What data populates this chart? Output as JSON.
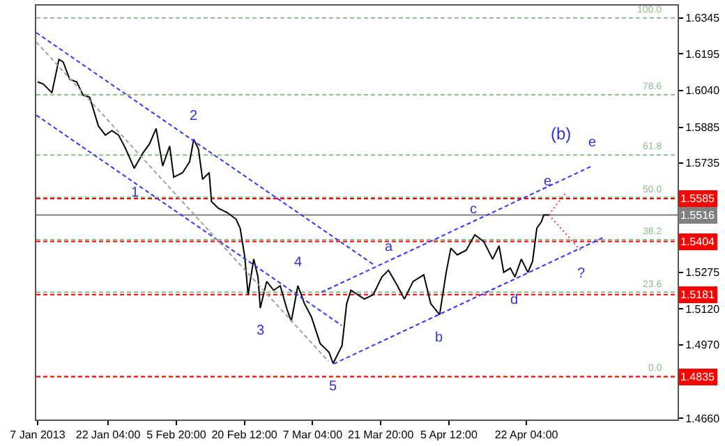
{
  "chart_data": {
    "type": "line",
    "xlim": [
      "2013-01-06T17:00",
      "2013-05-24T17:00"
    ],
    "xticks": [
      {
        "value": "2013-01-07",
        "label": "7 Jan 2013"
      },
      {
        "value": "2013-01-22T04:00",
        "label": "22 Jan 04:00"
      },
      {
        "value": "2013-02-05T20:00",
        "label": "5 Feb 20:00"
      },
      {
        "value": "2013-02-20T12:00",
        "label": "20 Feb 12:00"
      },
      {
        "value": "2013-03-07T04:00",
        "label": "7 Mar 04:00"
      },
      {
        "value": "2013-03-21T20:00",
        "label": "21 Mar 20:00"
      },
      {
        "value": "2013-04-05T12:00",
        "label": "5 Apr 12:00"
      },
      {
        "value": "2013-04-22T04:00",
        "label": "22 Apr 04:00"
      }
    ],
    "ylim": [
      1.4655,
      1.6397
    ],
    "yticks": [
      1.6345,
      1.6195,
      {
        "value": 1.604,
        "label": "1.6040"
      },
      1.5885,
      1.5735,
      1.5275,
      {
        "value": 1.512,
        "label": "1.5120"
      },
      {
        "value": 1.497,
        "label": "1.4970"
      },
      {
        "value": 1.466,
        "label": "1.4660"
      }
    ],
    "grid": false,
    "series": [
      {
        "color": "#000000",
        "line_style": "solid",
        "x": [
          "2013-01-07T00:00",
          "2013-01-08T05:00",
          "2013-01-10T02:00",
          "2013-01-11T14:00",
          "2013-01-12T12:00",
          "2013-01-13T22:00",
          "2013-01-15T10:00",
          "2013-01-16T19:00",
          "2013-01-18T05:00",
          "2013-01-20T02:00",
          "2013-01-21T14:00",
          "2013-01-23T00:00",
          "2013-01-24T10:00",
          "2013-01-25T22:00",
          "2013-01-27T19:00",
          "2013-01-29T17:00",
          "2013-01-31T02:00",
          "2013-02-01T12:00",
          "2013-02-02T22:00",
          "2013-02-04T10:00",
          "2013-02-05T07:00",
          "2013-02-07T05:00",
          "2013-02-08T17:00",
          "2013-02-09T14:00",
          "2013-02-10T14:00",
          "2013-02-11T12:00",
          "2013-02-12T22:00",
          "2013-02-13T10:00",
          "2013-02-14T22:00",
          "2013-02-16T19:00",
          "2013-02-18T17:00",
          "2013-02-19T14:00",
          "2013-02-20T14:00",
          "2013-02-21T07:00",
          "2013-02-22T12:00",
          "2013-02-23T10:00",
          "2013-02-23T22:00",
          "2013-02-25T07:00",
          "2013-02-26T19:00",
          "2013-02-28T05:00",
          "2013-03-01T14:00",
          "2013-03-02T14:00",
          "2013-03-04T00:00",
          "2013-03-05T10:00",
          "2013-03-06T22:00",
          "2013-03-08T19:00",
          "2013-03-10T17:00",
          "2013-03-11T14:00",
          "2013-03-13T12:00",
          "2013-03-14T12:00",
          "2013-03-15T10:00",
          "2013-03-18T07:00",
          "2013-03-20T05:00",
          "2013-03-22T02:00",
          "2013-03-23T12:00",
          "2013-03-25T10:00",
          "2013-03-26T22:00",
          "2013-03-28T19:00",
          "2013-03-31T02:00",
          "2013-04-01T14:00",
          "2013-04-03T12:00",
          "2013-04-04T22:00",
          "2013-04-05T22:00",
          "2013-04-07T07:00",
          "2013-04-09T05:00",
          "2013-04-11T02:00",
          "2013-04-13T00:00",
          "2013-04-14T22:00",
          "2013-04-16T07:00",
          "2013-04-17T07:00",
          "2013-04-18T17:00",
          "2013-04-19T17:00",
          "2013-04-21T02:00",
          "2013-04-22T12:00",
          "2013-04-23T12:00",
          "2013-04-24T10:00",
          "2013-04-25T10:00",
          "2013-04-25T22:00",
          "2013-04-27T00:00"
        ],
        "values": [
          1.6076,
          1.6067,
          1.603,
          1.617,
          1.616,
          1.6086,
          1.6076,
          1.602,
          1.6011,
          1.589,
          1.5852,
          1.5871,
          1.5852,
          1.5796,
          1.5712,
          1.5778,
          1.5815,
          1.588,
          1.5722,
          1.5806,
          1.5675,
          1.5694,
          1.574,
          1.5834,
          1.5796,
          1.5666,
          1.5694,
          1.5572,
          1.5544,
          1.5526,
          1.5498,
          1.546,
          1.5339,
          1.518,
          1.533,
          1.5255,
          1.5124,
          1.5236,
          1.5199,
          1.5218,
          1.5124,
          1.5068,
          1.5218,
          1.5143,
          1.5087,
          1.4975,
          1.4938,
          1.4891,
          1.4966,
          1.5143,
          1.5199,
          1.5162,
          1.518,
          1.5255,
          1.5283,
          1.5218,
          1.5162,
          1.5236,
          1.5264,
          1.5143,
          1.5096,
          1.5274,
          1.5376,
          1.5348,
          1.5367,
          1.5432,
          1.5404,
          1.533,
          1.5386,
          1.5274,
          1.5292,
          1.5255,
          1.533,
          1.5274,
          1.532,
          1.546,
          1.5488,
          1.5516,
          1.5516
        ]
      },
      {
        "color": "#3333ff",
        "line_style": "dashed",
        "x": [
          "2013-01-06T17:00",
          "2013-03-20T14:00"
        ],
        "values": [
          1.6283,
          1.5303
        ]
      },
      {
        "color": "#3333ff",
        "line_style": "dashed",
        "x": [
          "2013-01-06T17:00",
          "2013-03-13T10:00"
        ],
        "values": [
          1.5936,
          1.5051
        ]
      },
      {
        "color": "#a0a0a0",
        "line_style": "dashed",
        "x": [
          "2013-01-06T17:00",
          "2013-03-10T14:00"
        ],
        "values": [
          1.6244,
          1.49
        ]
      },
      {
        "color": "#3333ff",
        "line_style": "dashed",
        "x": [
          "2013-03-09T02:00",
          "2013-05-06T10:00"
        ],
        "values": [
          1.5191,
          1.5723
        ]
      },
      {
        "color": "#3333ff",
        "line_style": "dashed",
        "x": [
          "2013-03-11T17:00",
          "2013-05-08T17:00"
        ],
        "values": [
          1.4889,
          1.5421
        ]
      },
      {
        "color": "#ff3333",
        "line_style": "dotted",
        "x": [
          "2013-04-27T00:00",
          "2013-04-30T17:00"
        ],
        "values": [
          1.5516,
          1.5611
        ]
      },
      {
        "color": "#ff3333",
        "line_style": "dotted",
        "x": [
          "2013-04-27T00:00",
          "2013-05-03T22:00"
        ],
        "values": [
          1.5516,
          1.5365
        ]
      }
    ],
    "ref_lines": [
      {
        "axis": "y",
        "value": 1.6345,
        "color": "#8fbc8f",
        "line_style": "dashed"
      },
      {
        "axis": "y",
        "value": 1.6022,
        "color": "#8fbc8f",
        "line_style": "dashed"
      },
      {
        "axis": "y",
        "value": 1.5768,
        "color": "#8fbc8f",
        "line_style": "dashed"
      },
      {
        "axis": "y",
        "value": 1.559,
        "color": "#8fbc8f",
        "line_style": "dashed"
      },
      {
        "axis": "y",
        "value": 1.5412,
        "color": "#8fbc8f",
        "line_style": "dashed"
      },
      {
        "axis": "y",
        "value": 1.5191,
        "color": "#8fbc8f",
        "line_style": "dashed"
      },
      {
        "axis": "y",
        "value": 1.4835,
        "color": "#8fbc8f",
        "line_style": "dashed"
      },
      {
        "axis": "y",
        "value": 1.5585,
        "label": "1.5585",
        "color": "#ff0000",
        "line_style": "dashed"
      },
      {
        "axis": "y",
        "value": 1.5404,
        "label": "1.5404",
        "color": "#ff0000",
        "line_style": "dashed"
      },
      {
        "axis": "y",
        "value": 1.5181,
        "label": "1.5181",
        "color": "#ff0000",
        "line_style": "dashed"
      },
      {
        "axis": "y",
        "value": 1.4835,
        "label": "1.4835",
        "color": "#ff0000",
        "line_style": "dashed"
      },
      {
        "axis": "y",
        "value": 1.5516,
        "label": "1.5516",
        "color": "#808080",
        "line_style": "solid"
      }
    ],
    "annotations": [
      {
        "text": "1",
        "x": "2013-01-27T22:00",
        "y": 1.5606
      },
      {
        "text": "2",
        "x": "2013-02-09T14:00",
        "y": 1.5834
      },
      {
        "text": "3",
        "x": "2013-02-23T22:00",
        "y": 1.5124
      },
      {
        "text": "4",
        "x": "2013-03-04T00:00",
        "y": 1.5218
      },
      {
        "text": "5",
        "x": "2013-03-11T14:00",
        "y": 1.4891
      },
      {
        "text": "a",
        "x": "2013-03-23T12:00",
        "y": 1.5283
      },
      {
        "text": "b",
        "x": "2013-04-03T12:00",
        "y": 1.5096
      },
      {
        "text": "c",
        "x": "2013-04-10T17:00",
        "y": 1.5539
      },
      {
        "text": "d",
        "x": "2013-04-19T17:00",
        "y": 1.5255
      },
      {
        "text": "e",
        "x": "2013-04-26T17:00",
        "y": 1.5655
      },
      {
        "text": "e",
        "x": "2013-05-06T10:00",
        "y": 1.5723
      },
      {
        "text": "?",
        "x": "2013-05-03T22:00",
        "y": 1.5365
      },
      "(b)",
      {
        "text": "100.0",
        "x": "2013-05-22T00:00",
        "y": 1.6345
      },
      {
        "text": "78.6",
        "x": "2013-05-22T00:00",
        "y": 1.6022
      },
      {
        "text": "61.8",
        "x": "2013-05-22T00:00",
        "y": 1.5768
      },
      {
        "text": "50.0",
        "x": "2013-05-22T00:00",
        "y": 1.559
      },
      {
        "text": "38.2",
        "x": "2013-05-22T00:00",
        "y": 1.5412
      },
      {
        "text": "23.6",
        "x": "2013-05-22T00:00",
        "y": 1.5191
      },
      {
        "text": "0.0",
        "x": "2013-05-22T00:00",
        "y": 1.4835
      }
    ]
  }
}
